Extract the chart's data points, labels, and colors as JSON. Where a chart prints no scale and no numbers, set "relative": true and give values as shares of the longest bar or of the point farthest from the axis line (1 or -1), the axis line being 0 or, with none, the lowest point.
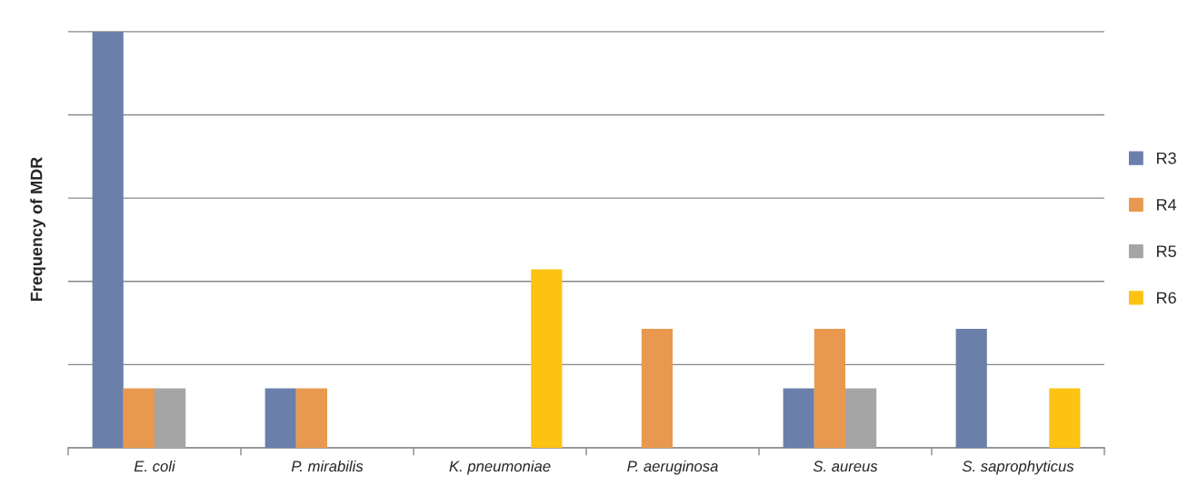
{
  "chart_data": {
    "type": "bar",
    "ylabel": "Frequency of MDR",
    "relative": true,
    "categories": [
      "E. coli",
      "P. mirabilis",
      "K. pneumoniae",
      "P. aeruginosa",
      "S. aureus",
      "S. saprophyticus"
    ],
    "series": [
      {
        "name": "R3",
        "color": "#6a80aa",
        "values": [
          1,
          0.143,
          null,
          null,
          0.143,
          0.286
        ]
      },
      {
        "name": "R4",
        "color": "#e8994f",
        "values": [
          0.143,
          0.143,
          null,
          0.286,
          0.286,
          null
        ]
      },
      {
        "name": "R5",
        "color": "#a5a5a5",
        "values": [
          0.143,
          null,
          null,
          null,
          0.143,
          null
        ]
      },
      {
        "name": "R6",
        "color": "#fdc313",
        "values": [
          null,
          null,
          0.429,
          null,
          null,
          0.143
        ]
      }
    ],
    "grid": "y",
    "legend": "right"
  }
}
